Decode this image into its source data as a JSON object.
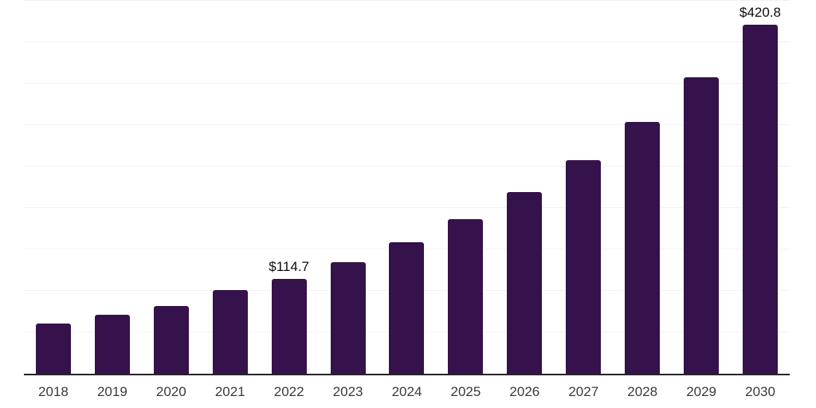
{
  "chart_data": {
    "type": "bar",
    "title": "",
    "xlabel": "",
    "ylabel": "",
    "categories": [
      "2018",
      "2019",
      "2020",
      "2021",
      "2022",
      "2023",
      "2024",
      "2025",
      "2026",
      "2027",
      "2028",
      "2029",
      "2030"
    ],
    "values": [
      61,
      71,
      81.5,
      100.5,
      114.7,
      135,
      159,
      187,
      219.5,
      258,
      303.5,
      357.5,
      420.8
    ],
    "value_labels": {
      "2022": "$114.7",
      "2030": "$420.8"
    },
    "ylim": [
      0,
      450
    ],
    "gridline_step": 50,
    "grid": "horizontal-only",
    "legend": "none",
    "y_axis_tick_labels": "none",
    "colors": {
      "bar": "#35124B",
      "background": "#ffffff",
      "gridline": "#f2f2f2",
      "axis_line": "#262626",
      "tick_label": "#3a3a3a",
      "value_label": "#0d0d0d"
    }
  }
}
